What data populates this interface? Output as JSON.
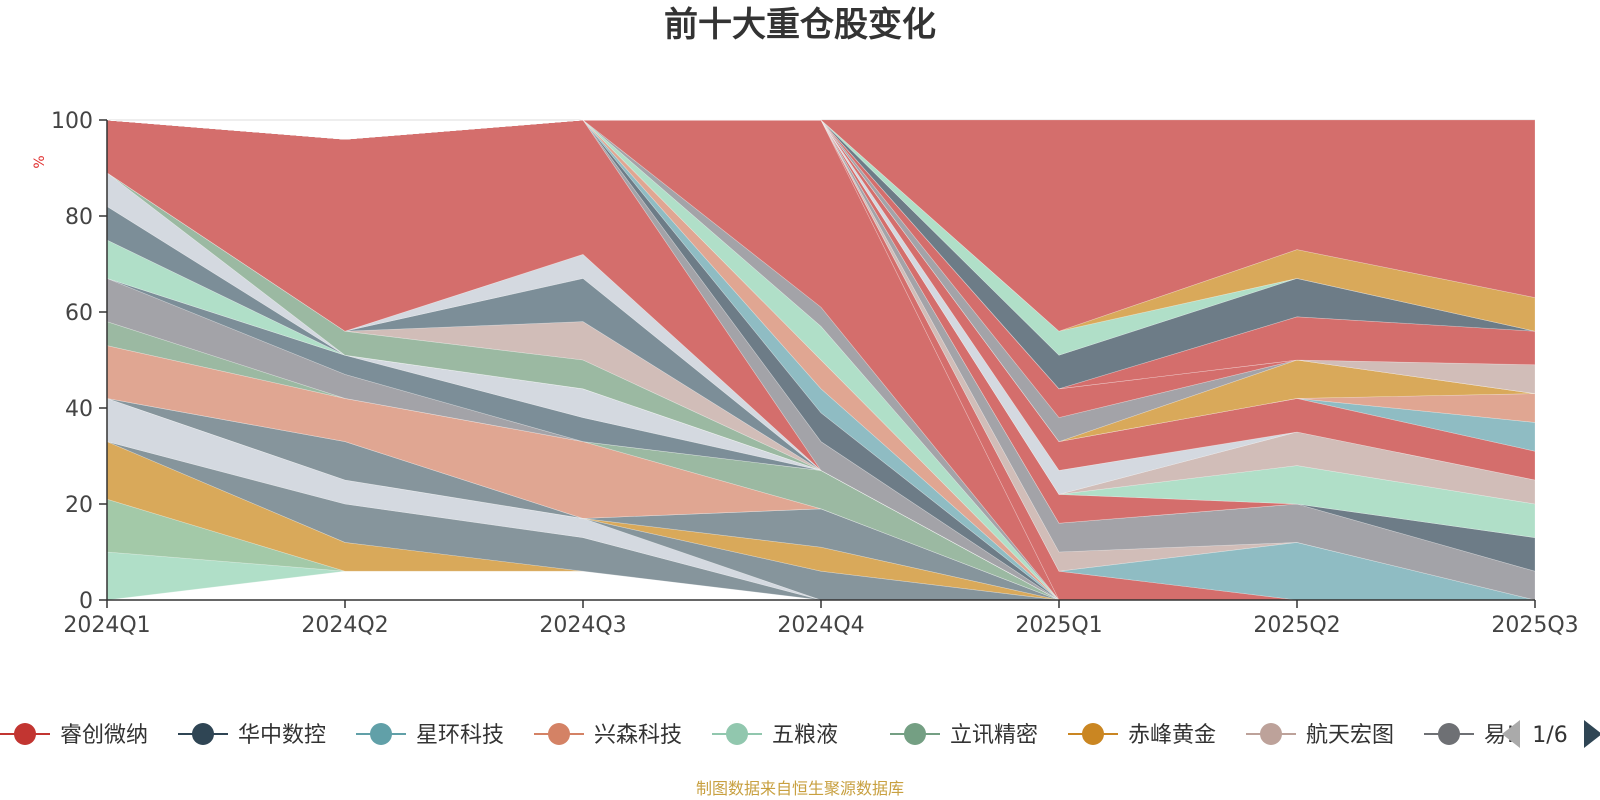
{
  "chart_data": {
    "type": "area",
    "title": "前十大重仓股变化",
    "ylabel": "%",
    "ylim": [
      0,
      100
    ],
    "y_ticks": [
      "0",
      "20",
      "40",
      "60",
      "80",
      "100"
    ],
    "categories": [
      "2024Q1",
      "2024Q2",
      "2024Q3",
      "2024Q4",
      "2025Q1",
      "2025Q2",
      "2025Q3"
    ],
    "layers": [
      {
        "color": "#e0a692",
        "bottom": [
          0,
          6,
          6,
          0,
          0,
          0,
          0
        ],
        "top": [
          0,
          6,
          6,
          0,
          0,
          0,
          0
        ]
      },
      {
        "color": "#b0dfc8",
        "bottom": [
          0,
          6,
          6,
          0,
          0,
          0,
          0
        ],
        "top": [
          10,
          6,
          6,
          0,
          0,
          0,
          0
        ]
      },
      {
        "color": "#a3c9a8",
        "bottom": [
          10,
          6,
          6,
          0,
          0,
          0,
          0
        ],
        "top": [
          21,
          6,
          6,
          0,
          0,
          0,
          0
        ]
      },
      {
        "color": "#d9a95a",
        "bottom": [
          21,
          6,
          6,
          0,
          0,
          0,
          0
        ],
        "top": [
          33,
          12,
          6,
          0,
          0,
          0,
          0
        ]
      },
      {
        "color": "#86959c",
        "bottom": [
          33,
          12,
          6,
          0,
          0,
          0,
          0
        ],
        "top": [
          33,
          20,
          13,
          0,
          0,
          0,
          0
        ]
      },
      {
        "color": "#d4d9e0",
        "bottom": [
          33,
          20,
          13,
          0,
          0,
          0,
          0
        ],
        "top": [
          42,
          25,
          17,
          0,
          0,
          0,
          0
        ]
      },
      {
        "color": "#86959c",
        "bottom": [
          42,
          25,
          17,
          0,
          0,
          0,
          0
        ],
        "top": [
          42,
          25,
          17,
          6,
          0,
          0,
          0
        ]
      },
      {
        "color": "#d9a95a",
        "bottom": [
          42,
          25,
          17,
          6,
          0,
          0,
          0
        ],
        "top": [
          42,
          25,
          17,
          11,
          0,
          0,
          0
        ]
      },
      {
        "color": "#86959c",
        "bottom": [
          42,
          25,
          17,
          11,
          0,
          0,
          0
        ],
        "top": [
          42,
          33,
          17,
          19,
          0,
          0,
          0
        ]
      },
      {
        "color": "#8fbcc3",
        "bottom": [
          42,
          33,
          17,
          19,
          0,
          0,
          0
        ],
        "top": [
          42,
          33,
          17,
          19,
          0,
          0,
          0
        ]
      },
      {
        "color": "#e0a692",
        "bottom": [
          42,
          33,
          17,
          19,
          0,
          0,
          0
        ],
        "top": [
          53,
          42,
          33,
          19,
          0,
          0,
          0
        ]
      },
      {
        "color": "#9bb9a2",
        "bottom": [
          53,
          42,
          33,
          19,
          0,
          0,
          0
        ],
        "top": [
          58,
          42,
          33,
          27,
          0,
          0,
          0
        ]
      },
      {
        "color": "#a3a3a8",
        "bottom": [
          58,
          42,
          33,
          27,
          0,
          0,
          0
        ],
        "top": [
          67,
          47,
          33,
          27,
          0,
          0,
          0
        ]
      },
      {
        "color": "#7c8e98",
        "bottom": [
          67,
          47,
          33,
          27,
          0,
          0,
          0
        ],
        "top": [
          67,
          51,
          38,
          27,
          0,
          0,
          0
        ]
      },
      {
        "color": "#d4d9e0",
        "bottom": [
          67,
          51,
          38,
          27,
          0,
          0,
          0
        ],
        "top": [
          67,
          51,
          44,
          27,
          0,
          0,
          0
        ]
      },
      {
        "color": "#b0dfc8",
        "bottom": [
          67,
          51,
          44,
          27,
          0,
          0,
          0
        ],
        "top": [
          75,
          51,
          44,
          27,
          0,
          0,
          0
        ]
      },
      {
        "color": "#7c8e98",
        "bottom": [
          75,
          51,
          44,
          27,
          0,
          0,
          0
        ],
        "top": [
          82,
          51,
          44,
          27,
          0,
          0,
          0
        ]
      },
      {
        "color": "#d4d9e0",
        "bottom": [
          82,
          51,
          44,
          27,
          0,
          0,
          0
        ],
        "top": [
          89,
          51,
          44,
          27,
          0,
          0,
          0
        ]
      },
      {
        "color": "#9bb9a2",
        "bottom": [
          89,
          51,
          44,
          27,
          0,
          0,
          0
        ],
        "top": [
          89,
          56,
          50,
          27,
          0,
          0,
          0
        ]
      },
      {
        "color": "#d1bdb8",
        "bottom": [
          89,
          56,
          50,
          27,
          0,
          0,
          0
        ],
        "top": [
          89,
          56,
          58,
          27,
          0,
          0,
          0
        ]
      },
      {
        "color": "#7c8e98",
        "bottom": [
          89,
          56,
          58,
          27,
          0,
          0,
          0
        ],
        "top": [
          89,
          56,
          67,
          27,
          0,
          0,
          0
        ]
      },
      {
        "color": "#d4d9e0",
        "bottom": [
          89,
          56,
          67,
          27,
          0,
          0,
          0
        ],
        "top": [
          89,
          56,
          72,
          27,
          0,
          0,
          0
        ]
      },
      {
        "color": "#d46e6c",
        "bottom": [
          89,
          56,
          72,
          27,
          0,
          0,
          0
        ],
        "top": [
          100,
          96,
          100,
          27,
          0,
          0,
          0
        ]
      },
      {
        "color": "#a3a3a8",
        "bottom": [
          100,
          96,
          100,
          27,
          0,
          0,
          0
        ],
        "top": [
          100,
          96,
          100,
          33,
          0,
          0,
          0
        ]
      },
      {
        "color": "#6d7c87",
        "bottom": [
          100,
          96,
          100,
          33,
          0,
          0,
          0
        ],
        "top": [
          100,
          96,
          100,
          39,
          0,
          0,
          0
        ]
      },
      {
        "color": "#8fbcc3",
        "bottom": [
          100,
          96,
          100,
          39,
          0,
          0,
          0
        ],
        "top": [
          100,
          96,
          100,
          44,
          0,
          0,
          0
        ]
      },
      {
        "color": "#e0a692",
        "bottom": [
          100,
          96,
          100,
          44,
          0,
          0,
          0
        ],
        "top": [
          100,
          96,
          100,
          50,
          0,
          0,
          0
        ]
      },
      {
        "color": "#b0dfc8",
        "bottom": [
          100,
          96,
          100,
          50,
          0,
          0,
          0
        ],
        "top": [
          100,
          96,
          100,
          57,
          0,
          0,
          0
        ]
      },
      {
        "color": "#a3a3a8",
        "bottom": [
          100,
          96,
          100,
          57,
          0,
          0,
          0
        ],
        "top": [
          100,
          96,
          100,
          61,
          0,
          0,
          0
        ]
      },
      {
        "color": "#d46e6c",
        "bottom": [
          100,
          96,
          100,
          61,
          0,
          0,
          0
        ],
        "top": [
          100,
          96,
          100,
          100,
          0,
          0,
          0
        ]
      },
      {
        "color": "#d46e6c",
        "bottom": [
          100,
          96,
          100,
          100,
          0,
          0,
          0
        ],
        "top": [
          100,
          96,
          100,
          100,
          6,
          0,
          0
        ]
      },
      {
        "color": "#8fbcc3",
        "bottom": [
          100,
          96,
          100,
          100,
          6,
          0,
          0
        ],
        "top": [
          100,
          96,
          100,
          100,
          6,
          12,
          0
        ]
      },
      {
        "color": "#d1bdb8",
        "bottom": [
          100,
          96,
          100,
          100,
          6,
          12,
          0
        ],
        "top": [
          100,
          96,
          100,
          100,
          10,
          12,
          0
        ]
      },
      {
        "color": "#a3a3a8",
        "bottom": [
          100,
          96,
          100,
          100,
          10,
          12,
          0
        ],
        "top": [
          100,
          96,
          100,
          100,
          16,
          20,
          6
        ]
      },
      {
        "color": "#6d7c87",
        "bottom": [
          100,
          96,
          100,
          100,
          16,
          20,
          6
        ],
        "top": [
          100,
          96,
          100,
          100,
          16,
          20,
          13
        ]
      },
      {
        "color": "#d46e6c",
        "bottom": [
          100,
          96,
          100,
          100,
          16,
          20,
          13
        ],
        "top": [
          100,
          96,
          100,
          100,
          22,
          20,
          13
        ]
      },
      {
        "color": "#b0dfc8",
        "bottom": [
          100,
          96,
          100,
          100,
          22,
          20,
          13
        ],
        "top": [
          100,
          96,
          100,
          100,
          22,
          28,
          20
        ]
      },
      {
        "color": "#d1bdb8",
        "bottom": [
          100,
          96,
          100,
          100,
          22,
          28,
          20
        ],
        "top": [
          100,
          96,
          100,
          100,
          22,
          35,
          25
        ]
      },
      {
        "color": "#d4d9e0",
        "bottom": [
          100,
          96,
          100,
          100,
          22,
          35,
          25
        ],
        "top": [
          100,
          96,
          100,
          100,
          27,
          35,
          25
        ]
      },
      {
        "color": "#d46e6c",
        "bottom": [
          100,
          96,
          100,
          100,
          27,
          35,
          25
        ],
        "top": [
          100,
          96,
          100,
          100,
          33,
          42,
          31
        ]
      },
      {
        "color": "#8fbcc3",
        "bottom": [
          100,
          96,
          100,
          100,
          33,
          42,
          31
        ],
        "top": [
          100,
          96,
          100,
          100,
          33,
          42,
          37
        ]
      },
      {
        "color": "#e0a692",
        "bottom": [
          100,
          96,
          100,
          100,
          33,
          42,
          37
        ],
        "top": [
          100,
          96,
          100,
          100,
          33,
          42,
          43
        ]
      },
      {
        "color": "#d9a95a",
        "bottom": [
          100,
          96,
          100,
          100,
          33,
          42,
          43
        ],
        "top": [
          100,
          96,
          100,
          100,
          33,
          50,
          43
        ]
      },
      {
        "color": "#a3a3a8",
        "bottom": [
          100,
          96,
          100,
          100,
          33,
          50,
          43
        ],
        "top": [
          100,
          96,
          100,
          100,
          38,
          50,
          43
        ]
      },
      {
        "color": "#d46e6c",
        "bottom": [
          100,
          96,
          100,
          100,
          38,
          50,
          43
        ],
        "top": [
          100,
          96,
          100,
          100,
          44,
          50,
          43
        ]
      },
      {
        "color": "#d1bdb8",
        "bottom": [
          100,
          96,
          100,
          100,
          44,
          50,
          43
        ],
        "top": [
          100,
          96,
          100,
          100,
          44,
          50,
          49
        ]
      },
      {
        "color": "#d46e6c",
        "bottom": [
          100,
          96,
          100,
          100,
          44,
          50,
          49
        ],
        "top": [
          100,
          96,
          100,
          100,
          44,
          59,
          56
        ]
      },
      {
        "color": "#6d7c87",
        "bottom": [
          100,
          96,
          100,
          100,
          44,
          59,
          56
        ],
        "top": [
          100,
          96,
          100,
          100,
          51,
          67,
          56
        ]
      },
      {
        "color": "#b0dfc8",
        "bottom": [
          100,
          96,
          100,
          100,
          51,
          67,
          56
        ],
        "top": [
          100,
          96,
          100,
          100,
          56,
          67,
          56
        ]
      },
      {
        "color": "#d9a95a",
        "bottom": [
          100,
          96,
          100,
          100,
          56,
          67,
          56
        ],
        "top": [
          100,
          96,
          100,
          100,
          56,
          73,
          63
        ]
      },
      {
        "color": "#d46e6c",
        "bottom": [
          100,
          96,
          100,
          100,
          56,
          73,
          63
        ],
        "top": [
          100,
          96,
          100,
          100,
          100,
          100,
          100
        ]
      }
    ],
    "legend": [
      {
        "name": "睿创微纳",
        "color": "#c23531"
      },
      {
        "name": "华中数控",
        "color": "#2f4554"
      },
      {
        "name": "星环科技",
        "color": "#61a0a8"
      },
      {
        "name": "兴森科技",
        "color": "#d48265"
      },
      {
        "name": "五粮液",
        "color": "#91c7ae"
      },
      {
        "name": "立讯精密",
        "color": "#749f83"
      },
      {
        "name": "赤峰黄金",
        "color": "#ca8622"
      },
      {
        "name": "航天宏图",
        "color": "#bda29a"
      },
      {
        "name": "易!",
        "color": "#6e7074"
      }
    ],
    "legend_page": "1/6",
    "source": "制图数据来自恒生聚源数据库"
  }
}
